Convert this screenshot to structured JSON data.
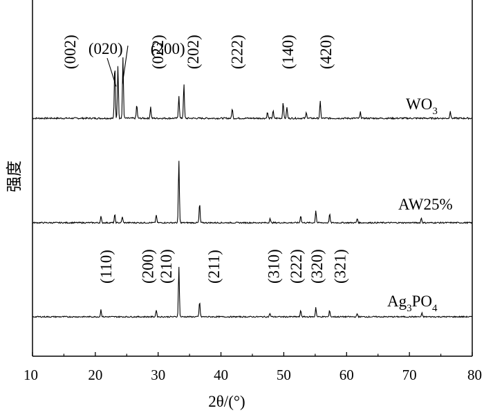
{
  "chart_data": {
    "type": "line",
    "xlabel": "2θ/(°)",
    "ylabel": "强度",
    "xlim": [
      10,
      80
    ],
    "x_ticks": [
      10,
      20,
      30,
      40,
      50,
      60,
      70,
      80
    ],
    "grid": false,
    "series": [
      {
        "name": "WO3",
        "label_main": "WO",
        "label_sub": "3",
        "peaks": [
          {
            "x": 23.1,
            "intensity": 0.72
          },
          {
            "x": 23.6,
            "intensity": 0.7
          },
          {
            "x": 24.4,
            "intensity": 0.8
          },
          {
            "x": 26.6,
            "intensity": 0.18
          },
          {
            "x": 28.8,
            "intensity": 0.15
          },
          {
            "x": 33.3,
            "intensity": 0.3
          },
          {
            "x": 34.1,
            "intensity": 0.45
          },
          {
            "x": 41.8,
            "intensity": 0.13
          },
          {
            "x": 47.4,
            "intensity": 0.08
          },
          {
            "x": 48.3,
            "intensity": 0.1
          },
          {
            "x": 49.9,
            "intensity": 0.22
          },
          {
            "x": 50.5,
            "intensity": 0.15
          },
          {
            "x": 53.6,
            "intensity": 0.08
          },
          {
            "x": 55.8,
            "intensity": 0.22
          },
          {
            "x": 62.2,
            "intensity": 0.08
          },
          {
            "x": 76.5,
            "intensity": 0.1
          }
        ],
        "peak_labels": [
          {
            "text": "(002)",
            "x": 16.6,
            "rotated": true
          },
          {
            "text": "(020)",
            "x": 18.9,
            "rotated": false
          },
          {
            "text": "(200)",
            "x": 28.8,
            "rotated": false
          },
          {
            "text": "(022)",
            "x": 30.6,
            "rotated": true
          },
          {
            "text": "(202)",
            "x": 36.2,
            "rotated": true
          },
          {
            "text": "(222)",
            "x": 43.2,
            "rotated": true
          },
          {
            "text": "(140)",
            "x": 51.3,
            "rotated": true
          },
          {
            "text": "(420)",
            "x": 57.3,
            "rotated": true
          }
        ]
      },
      {
        "name": "AW25%",
        "label_main": "AW25%",
        "label_sub": "",
        "peaks": [
          {
            "x": 20.9,
            "intensity": 0.1
          },
          {
            "x": 23.1,
            "intensity": 0.13
          },
          {
            "x": 24.3,
            "intensity": 0.1
          },
          {
            "x": 29.7,
            "intensity": 0.13
          },
          {
            "x": 33.3,
            "intensity": 1.0
          },
          {
            "x": 36.6,
            "intensity": 0.31
          },
          {
            "x": 47.8,
            "intensity": 0.07
          },
          {
            "x": 52.7,
            "intensity": 0.12
          },
          {
            "x": 55.1,
            "intensity": 0.2
          },
          {
            "x": 57.3,
            "intensity": 0.14
          },
          {
            "x": 61.7,
            "intensity": 0.07
          },
          {
            "x": 71.9,
            "intensity": 0.08
          }
        ],
        "peak_labels": []
      },
      {
        "name": "Ag3PO4",
        "label_main": "Ag",
        "label_sub": "3",
        "label_main2": "PO",
        "label_sub2": "4",
        "peaks": [
          {
            "x": 20.9,
            "intensity": 0.12
          },
          {
            "x": 29.7,
            "intensity": 0.12
          },
          {
            "x": 33.3,
            "intensity": 0.84
          },
          {
            "x": 36.6,
            "intensity": 0.26
          },
          {
            "x": 47.8,
            "intensity": 0.06
          },
          {
            "x": 52.7,
            "intensity": 0.11
          },
          {
            "x": 55.1,
            "intensity": 0.16
          },
          {
            "x": 57.3,
            "intensity": 0.11
          },
          {
            "x": 61.7,
            "intensity": 0.05
          },
          {
            "x": 72.0,
            "intensity": 0.06
          }
        ],
        "peak_labels": [
          {
            "text": "(110)",
            "x": 22.3,
            "rotated": true
          },
          {
            "text": "(200)",
            "x": 29.0,
            "rotated": true
          },
          {
            "text": "(210)",
            "x": 31.9,
            "rotated": true
          },
          {
            "text": "(211)",
            "x": 39.5,
            "rotated": true
          },
          {
            "text": "(310)",
            "x": 49.0,
            "rotated": true
          },
          {
            "text": "(222)",
            "x": 52.6,
            "rotated": true
          },
          {
            "text": "(320)",
            "x": 55.9,
            "rotated": true
          },
          {
            "text": "(321)",
            "x": 59.6,
            "rotated": true
          }
        ]
      }
    ]
  }
}
